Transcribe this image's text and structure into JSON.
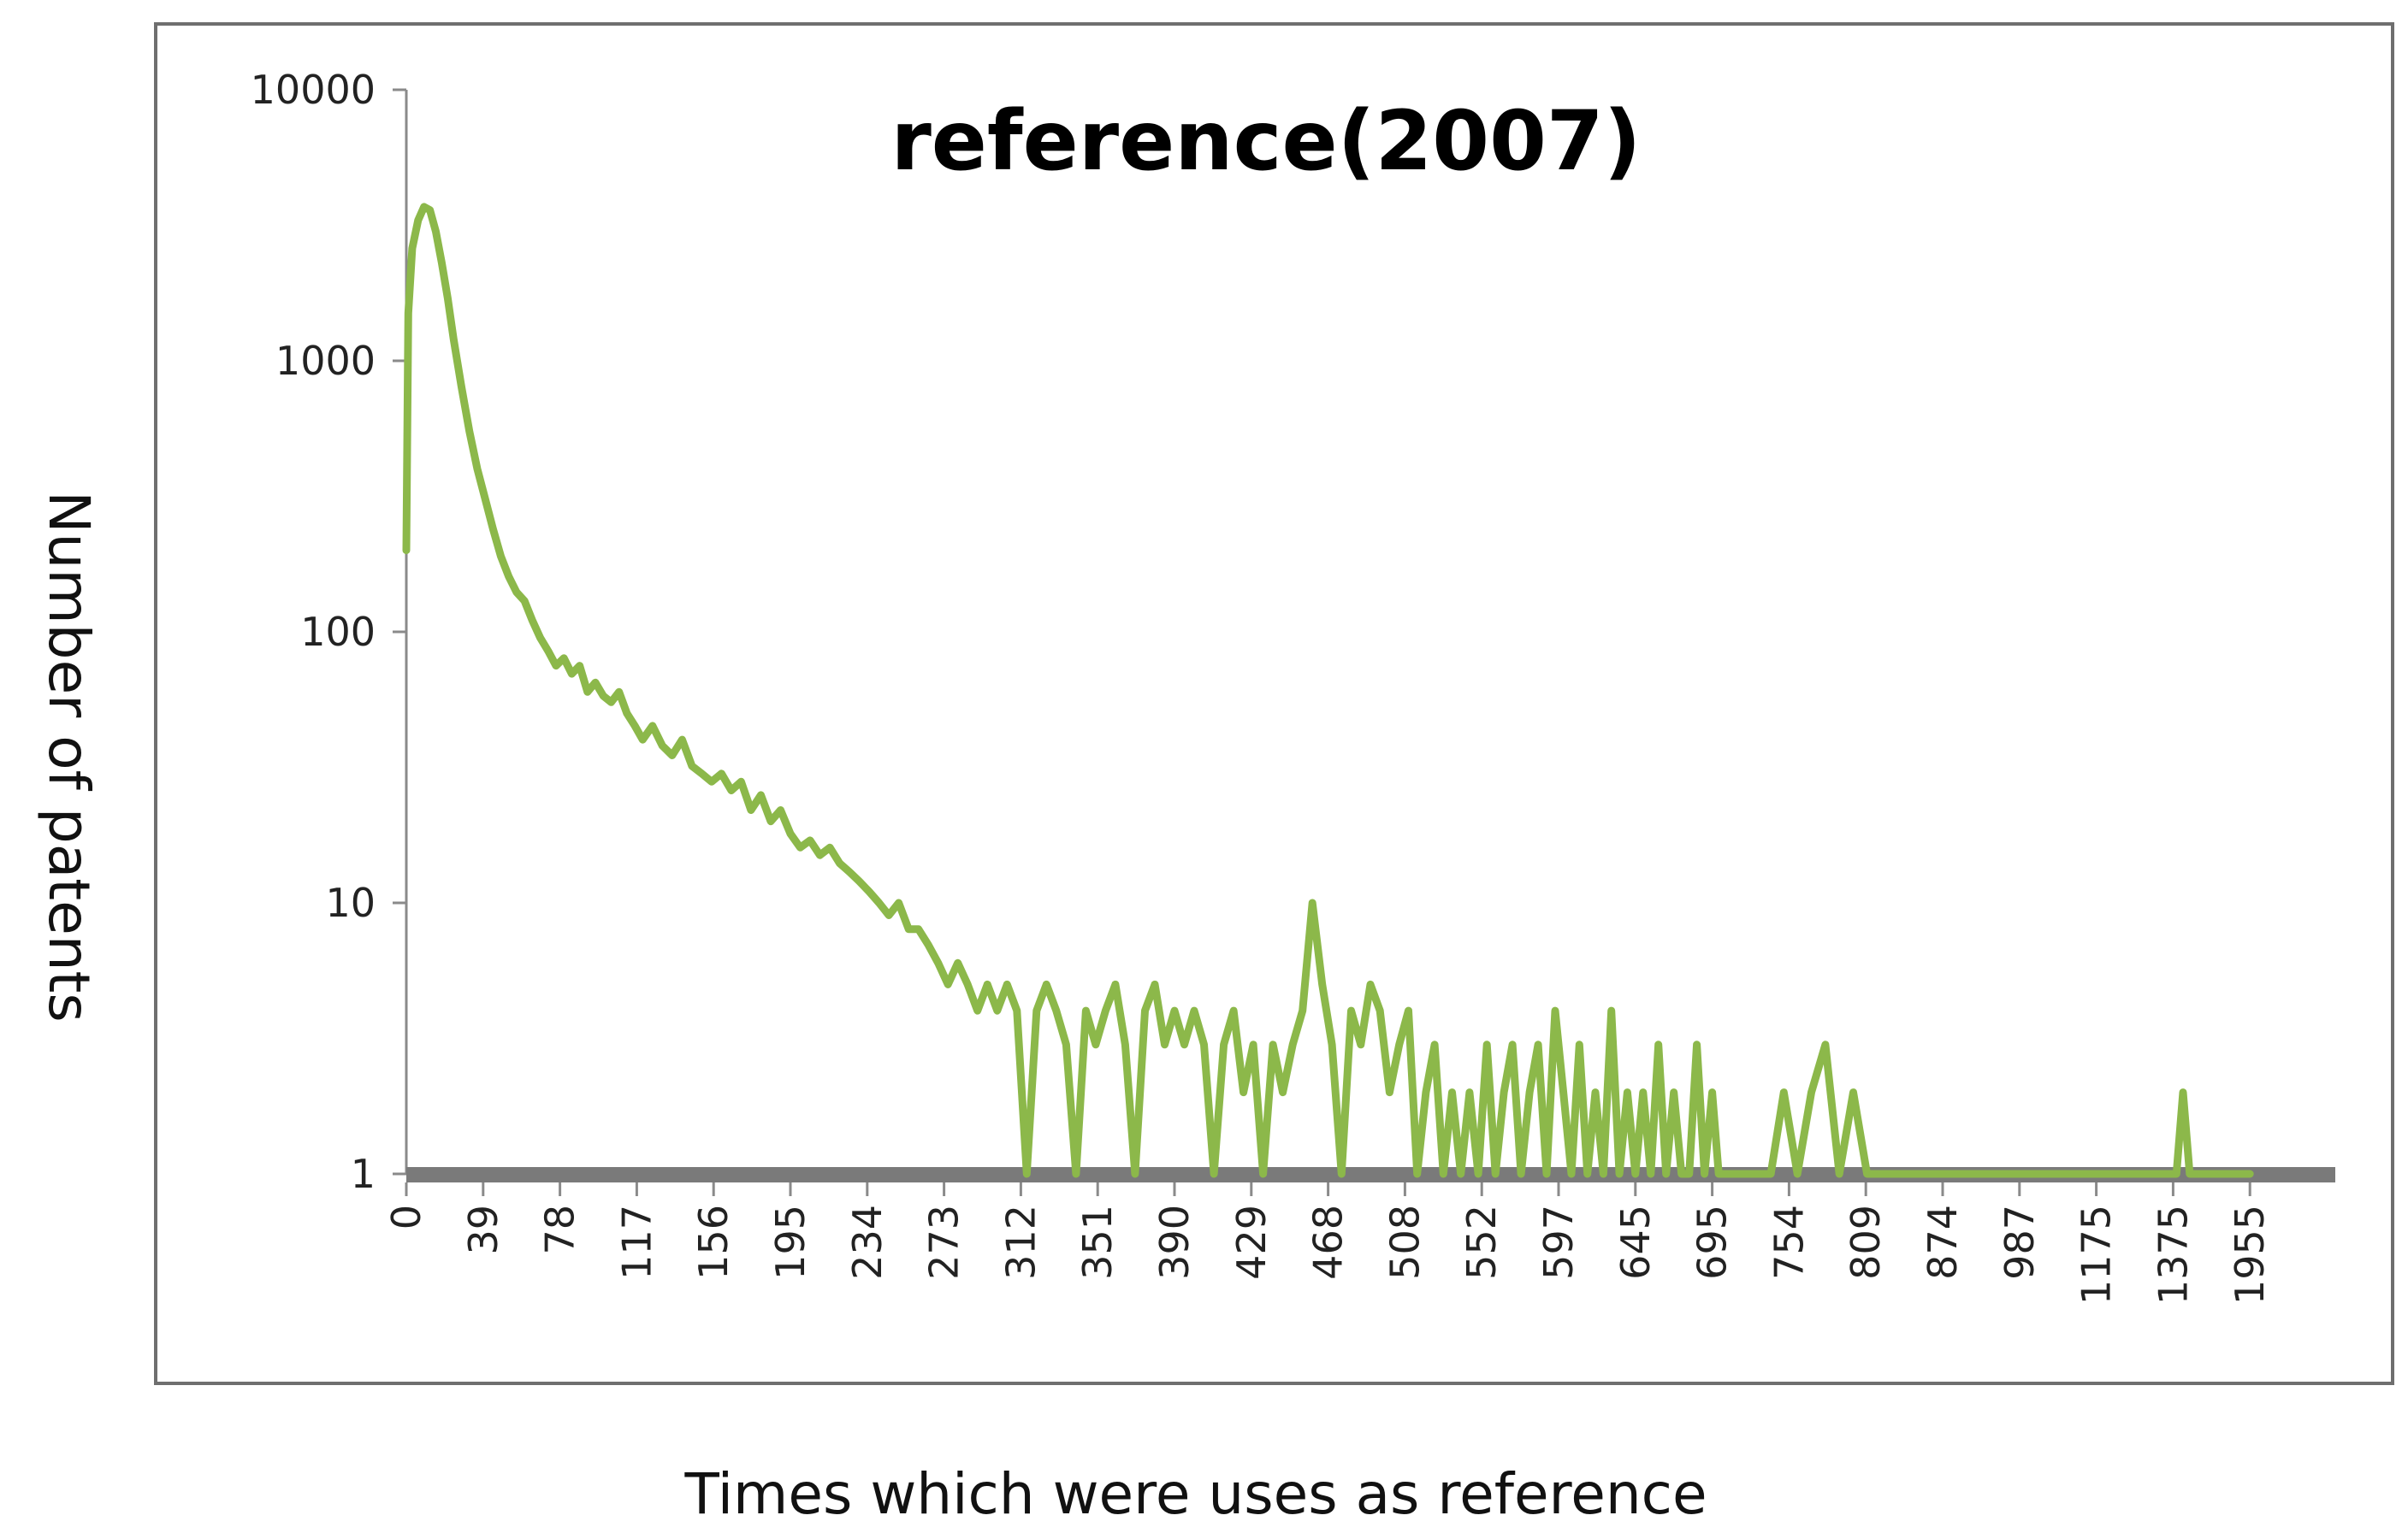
{
  "chart_data": {
    "type": "line",
    "title": "reference(2007)",
    "xlabel": "Times which were uses as reference",
    "ylabel": "Number of patents",
    "y_scale": "log",
    "ylim": [
      1,
      10000
    ],
    "y_ticks": [
      "10000",
      "1000",
      "100",
      "10",
      "1"
    ],
    "x_tick_labels": [
      "0",
      "39",
      "78",
      "117",
      "156",
      "195",
      "234",
      "273",
      "312",
      "351",
      "390",
      "429",
      "468",
      "508",
      "552",
      "597",
      "645",
      "695",
      "754",
      "809",
      "874",
      "987",
      "1175",
      "1375",
      "1955"
    ],
    "grid": false,
    "legend": "none",
    "series": [
      {
        "color": "#8cb84a",
        "points": [
          [
            0,
            200
          ],
          [
            1,
            1500
          ],
          [
            3,
            2600
          ],
          [
            6,
            3300
          ],
          [
            9,
            3700
          ],
          [
            12,
            3600
          ],
          [
            15,
            3000
          ],
          [
            18,
            2300
          ],
          [
            21,
            1700
          ],
          [
            24,
            1200
          ],
          [
            28,
            800
          ],
          [
            32,
            550
          ],
          [
            36,
            400
          ],
          [
            40,
            310
          ],
          [
            44,
            240
          ],
          [
            48,
            190
          ],
          [
            52,
            160
          ],
          [
            56,
            140
          ],
          [
            60,
            130
          ],
          [
            64,
            110
          ],
          [
            68,
            95
          ],
          [
            72,
            85
          ],
          [
            76,
            75
          ],
          [
            80,
            80
          ],
          [
            84,
            70
          ],
          [
            88,
            75
          ],
          [
            92,
            60
          ],
          [
            96,
            65
          ],
          [
            100,
            58
          ],
          [
            104,
            55
          ],
          [
            108,
            60
          ],
          [
            112,
            50
          ],
          [
            116,
            45
          ],
          [
            120,
            40
          ],
          [
            125,
            45
          ],
          [
            130,
            38
          ],
          [
            135,
            35
          ],
          [
            140,
            40
          ],
          [
            145,
            32
          ],
          [
            150,
            30
          ],
          [
            155,
            28
          ],
          [
            160,
            30
          ],
          [
            165,
            26
          ],
          [
            170,
            28
          ],
          [
            175,
            22
          ],
          [
            180,
            25
          ],
          [
            185,
            20
          ],
          [
            190,
            22
          ],
          [
            195,
            18
          ],
          [
            200,
            16
          ],
          [
            205,
            17
          ],
          [
            210,
            15
          ],
          [
            215,
            16
          ],
          [
            220,
            14
          ],
          [
            225,
            13
          ],
          [
            230,
            12
          ],
          [
            235,
            11
          ],
          [
            240,
            10
          ],
          [
            245,
            9
          ],
          [
            250,
            10
          ],
          [
            255,
            8
          ],
          [
            260,
            8
          ],
          [
            265,
            7
          ],
          [
            270,
            6
          ],
          [
            275,
            5
          ],
          [
            280,
            6
          ],
          [
            285,
            5
          ],
          [
            290,
            4
          ],
          [
            295,
            5
          ],
          [
            300,
            4
          ],
          [
            305,
            5
          ],
          [
            310,
            4
          ],
          [
            315,
            1
          ],
          [
            320,
            4
          ],
          [
            325,
            5
          ],
          [
            330,
            4
          ],
          [
            335,
            3
          ],
          [
            340,
            1
          ],
          [
            345,
            4
          ],
          [
            350,
            3
          ],
          [
            355,
            4
          ],
          [
            360,
            5
          ],
          [
            365,
            3
          ],
          [
            370,
            1
          ],
          [
            375,
            4
          ],
          [
            380,
            5
          ],
          [
            385,
            3
          ],
          [
            390,
            4
          ],
          [
            395,
            3
          ],
          [
            400,
            4
          ],
          [
            405,
            3
          ],
          [
            410,
            1
          ],
          [
            415,
            3
          ],
          [
            420,
            4
          ],
          [
            425,
            2
          ],
          [
            430,
            3
          ],
          [
            435,
            1
          ],
          [
            440,
            3
          ],
          [
            445,
            2
          ],
          [
            450,
            3
          ],
          [
            455,
            4
          ],
          [
            460,
            10
          ],
          [
            465,
            5
          ],
          [
            470,
            3
          ],
          [
            475,
            1
          ],
          [
            480,
            4
          ],
          [
            485,
            3
          ],
          [
            490,
            5
          ],
          [
            495,
            4
          ],
          [
            500,
            2
          ],
          [
            505,
            3
          ],
          [
            510,
            4
          ],
          [
            515,
            1
          ],
          [
            520,
            2
          ],
          [
            525,
            3
          ],
          [
            530,
            1
          ],
          [
            535,
            2
          ],
          [
            540,
            1
          ],
          [
            545,
            2
          ],
          [
            550,
            1
          ],
          [
            555,
            3
          ],
          [
            560,
            1
          ],
          [
            565,
            2
          ],
          [
            570,
            3
          ],
          [
            575,
            1
          ],
          [
            580,
            2
          ],
          [
            585,
            3
          ],
          [
            590,
            1
          ],
          [
            595,
            4
          ],
          [
            600,
            2
          ],
          [
            605,
            1
          ],
          [
            610,
            3
          ],
          [
            615,
            1
          ],
          [
            620,
            2
          ],
          [
            625,
            1
          ],
          [
            630,
            4
          ],
          [
            635,
            1
          ],
          [
            640,
            2
          ],
          [
            645,
            1
          ],
          [
            650,
            2
          ],
          [
            655,
            1
          ],
          [
            660,
            3
          ],
          [
            665,
            1
          ],
          [
            670,
            2
          ],
          [
            675,
            1
          ],
          [
            680,
            1
          ],
          [
            685,
            3
          ],
          [
            690,
            1
          ],
          [
            695,
            2
          ],
          [
            700,
            1
          ],
          [
            710,
            1
          ],
          [
            720,
            1
          ],
          [
            730,
            1
          ],
          [
            740,
            1
          ],
          [
            750,
            2
          ],
          [
            760,
            1
          ],
          [
            770,
            2
          ],
          [
            780,
            3
          ],
          [
            790,
            1
          ],
          [
            800,
            2
          ],
          [
            810,
            1
          ],
          [
            820,
            1
          ],
          [
            830,
            1
          ],
          [
            840,
            1
          ],
          [
            850,
            1
          ],
          [
            860,
            1
          ],
          [
            870,
            1
          ],
          [
            880,
            1
          ],
          [
            890,
            1
          ],
          [
            900,
            1
          ],
          [
            920,
            1
          ],
          [
            940,
            1
          ],
          [
            960,
            1
          ],
          [
            980,
            1
          ],
          [
            1000,
            1
          ],
          [
            1050,
            1
          ],
          [
            1100,
            1
          ],
          [
            1150,
            1
          ],
          [
            1200,
            1
          ],
          [
            1250,
            1
          ],
          [
            1300,
            1
          ],
          [
            1350,
            1
          ],
          [
            1400,
            1
          ],
          [
            1450,
            2
          ],
          [
            1500,
            1
          ],
          [
            1600,
            1
          ],
          [
            1700,
            1
          ],
          [
            1800,
            1
          ],
          [
            1900,
            1
          ],
          [
            1955,
            1
          ]
        ]
      }
    ]
  }
}
